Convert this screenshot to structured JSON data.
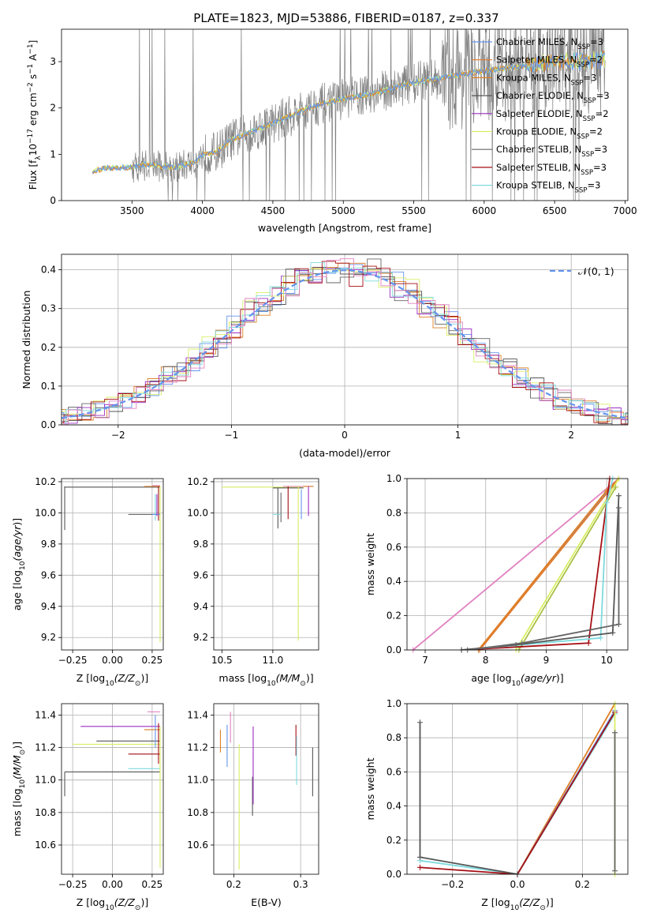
{
  "figure": {
    "title": "PLATE=1823, MJD=53886, FIBERID=0187, z=0.337",
    "colors": [
      "#6495ED",
      "#DE7F25",
      "#E27C2E",
      "#555555",
      "#9B2FC1",
      "#D9EE63",
      "#656565",
      "#A50F15",
      "#7FDADE",
      "#E282C0"
    ],
    "legend_entries": [
      {
        "text": "Chabrier MILES, N",
        "sub": "SSP",
        "tail": "=3",
        "color": "#6495ED"
      },
      {
        "text": "Salpeter MILES, N",
        "sub": "SSP",
        "tail": "=2",
        "color": "#E27C2E"
      },
      {
        "text": "Kroupa MILES, N",
        "sub": "SSP",
        "tail": "=3",
        "color": "#DE7F25"
      },
      {
        "text": "Chabrier ELODIE, N",
        "sub": "SSP",
        "tail": "=3",
        "color": "#555555"
      },
      {
        "text": "Salpeter ELODIE, N",
        "sub": "SSP",
        "tail": "=2",
        "color": "#9B2FC1"
      },
      {
        "text": "Kroupa ELODIE, N",
        "sub": "SSP",
        "tail": "=2",
        "color": "#D9EE63"
      },
      {
        "text": "Chabrier STELIB, N",
        "sub": "SSP",
        "tail": "=3",
        "color": "#656565"
      },
      {
        "text": "Salpeter STELIB, N",
        "sub": "SSP",
        "tail": "=3",
        "color": "#A50F15"
      },
      {
        "text": "Kroupa STELIB, N",
        "sub": "SSP",
        "tail": "=3",
        "color": "#7FDADE"
      }
    ]
  },
  "chart_data": [
    {
      "id": "spectrum",
      "type": "line",
      "xlabel": "wavelength [Angstrom, rest frame]",
      "ylabel_main": "Flux [f",
      "ylabel_sub": "λ",
      "ylabel_mid": "10",
      "ylabel_exp": "−17",
      "ylabel_mid2": " erg cm",
      "ylabel_exp2": "−2",
      "ylabel_mid3": " s",
      "ylabel_exp3": "−1",
      "ylabel_mid4": " A",
      "ylabel_exp4": "−1",
      "ylabel_tail": "]",
      "xlim": [
        3000,
        7020
      ],
      "ylim": [
        0,
        3.7
      ],
      "xticks": [
        "3500",
        "4000",
        "4500",
        "5000",
        "5500",
        "6000",
        "6500",
        "7000"
      ],
      "yticks": [
        "0",
        "1",
        "2",
        "3"
      ],
      "grid": false,
      "legend": "top-right",
      "data_range": [
        3220,
        6860
      ],
      "continuum": [
        [
          3220,
          0.62
        ],
        [
          3300,
          0.7
        ],
        [
          3500,
          0.72
        ],
        [
          3600,
          0.78
        ],
        [
          3700,
          0.75
        ],
        [
          3800,
          0.72
        ],
        [
          3950,
          0.82
        ],
        [
          4000,
          1.0
        ],
        [
          4100,
          1.05
        ],
        [
          4200,
          1.3
        ],
        [
          4400,
          1.55
        ],
        [
          4600,
          1.8
        ],
        [
          4800,
          2.05
        ],
        [
          5000,
          2.2
        ],
        [
          5200,
          2.3
        ],
        [
          5500,
          2.55
        ],
        [
          5800,
          2.7
        ],
        [
          6000,
          2.8
        ],
        [
          6200,
          2.88
        ],
        [
          6500,
          2.98
        ],
        [
          6860,
          3.05
        ]
      ]
    },
    {
      "id": "residuals",
      "type": "line",
      "xlabel": "(data-model)/error",
      "ylabel": "Normed distribution",
      "xlim": [
        -2.5,
        2.5
      ],
      "ylim": [
        0,
        0.44
      ],
      "xticks": [
        "−2",
        "−1",
        "0",
        "1",
        "2"
      ],
      "yticks": [
        "0.0",
        "0.1",
        "0.2",
        "0.3",
        "0.4"
      ],
      "grid": true,
      "legend": "top-right",
      "reference_label": "𝒩(0, 1)",
      "reference_color": "#6495ED",
      "bin_width": 0.12
    },
    {
      "id": "age_vs_Z",
      "type": "scatter",
      "xlabel": "Z [log",
      "xlabel_sub": "10",
      "xlabel_italic": "(Z/Z",
      "xlabel_sub2": "⊙",
      "xlabel_tail": ")]",
      "ylabel": "age  [log",
      "ylabel_sub": "10",
      "ylabel_italic": "(age/yr",
      "ylabel_tail": ")]",
      "xlim": [
        -0.32,
        0.32
      ],
      "ylim": [
        9.12,
        10.22
      ],
      "xticks": [
        "−0.25",
        "0.00",
        "0.25"
      ],
      "xtick_values": [
        -0.25,
        0,
        0.25
      ],
      "yticks": [
        "9.2",
        "9.4",
        "9.6",
        "9.8",
        "10.0",
        "10.2"
      ],
      "ytick_values": [
        9.2,
        9.4,
        9.6,
        9.8,
        10.0,
        10.2
      ],
      "grid": true
    },
    {
      "id": "age_vs_mass",
      "type": "scatter",
      "xlabel": "mass [log",
      "xlabel_sub": "10",
      "xlabel_italic": "(M/M",
      "xlabel_sub2": "⊙",
      "xlabel_tail": ")]",
      "xlim": [
        10.42,
        11.45
      ],
      "ylim": [
        9.12,
        10.22
      ],
      "xticks": [
        "10.5",
        "11.0"
      ],
      "xtick_values": [
        10.5,
        11.0
      ],
      "yticks": [
        "9.2",
        "9.4",
        "9.6",
        "9.8",
        "10.0",
        "10.2"
      ],
      "ytick_values": [
        9.2,
        9.4,
        9.6,
        9.8,
        10.0,
        10.2
      ],
      "grid": true
    },
    {
      "id": "massweight_vs_age",
      "type": "line",
      "xlabel": "age  [log",
      "xlabel_sub": "10",
      "xlabel_italic": "(age/yr",
      "xlabel_tail": ")]",
      "ylabel": "mass weight",
      "xlim": [
        6.7,
        10.35
      ],
      "ylim": [
        0,
        1
      ],
      "xticks": [
        "7",
        "8",
        "9",
        "10"
      ],
      "xtick_values": [
        7,
        8,
        9,
        10
      ],
      "yticks": [
        "0.0",
        "0.2",
        "0.4",
        "0.6",
        "0.8",
        "1.0"
      ],
      "ytick_values": [
        0,
        0.2,
        0.4,
        0.6,
        0.8,
        1.0
      ],
      "grid": true,
      "series": [
        {
          "color": "#E282C0",
          "points": [
            [
              6.8,
              0.0
            ],
            [
              10.2,
              1.0
            ]
          ]
        },
        {
          "color": "#6495ED",
          "points": [
            [
              7.9,
              0.0
            ],
            [
              10.0,
              0.92
            ],
            [
              10.2,
              1.0
            ]
          ]
        },
        {
          "color": "#DE7F25",
          "points": [
            [
              7.88,
              0.0
            ],
            [
              10.0,
              0.93
            ],
            [
              10.2,
              1.0
            ]
          ]
        },
        {
          "color": "#E27C2E",
          "points": [
            [
              7.9,
              0.0
            ],
            [
              10.2,
              1.0
            ]
          ]
        },
        {
          "color": "#D9EE63",
          "points": [
            [
              8.5,
              0.0
            ],
            [
              10.2,
              1.0
            ]
          ]
        },
        {
          "color": "#A8C046",
          "points": [
            [
              8.55,
              0.0
            ],
            [
              10.15,
              0.95
            ]
          ]
        },
        {
          "color": "#A50F15",
          "points": [
            [
              7.6,
              0.0
            ],
            [
              9.7,
              0.04
            ],
            [
              10.05,
              1.0
            ]
          ]
        },
        {
          "color": "#7FDADE",
          "points": [
            [
              7.6,
              0.0
            ],
            [
              9.9,
              0.07
            ],
            [
              10.0,
              0.86
            ],
            [
              10.1,
              1.0
            ]
          ]
        },
        {
          "color": "#555555",
          "points": [
            [
              7.6,
              0.0
            ],
            [
              8.5,
              0.03
            ],
            [
              10.1,
              0.1
            ],
            [
              10.2,
              0.9
            ]
          ]
        },
        {
          "color": "#656565",
          "points": [
            [
              7.7,
              0.0
            ],
            [
              8.6,
              0.04
            ],
            [
              10.2,
              0.15
            ],
            [
              10.2,
              0.83
            ]
          ]
        }
      ]
    },
    {
      "id": "mass_vs_Z",
      "type": "scatter",
      "xlabel": "Z [log",
      "xlabel_sub": "10",
      "xlabel_italic": "(Z/Z",
      "xlabel_sub2": "⊙",
      "xlabel_tail": ")]",
      "ylabel": "mass [log",
      "ylabel_sub": "10",
      "ylabel_italic": "(M/M",
      "ylabel_sub2": "⊙",
      "ylabel_tail": ")]",
      "xlim": [
        -0.32,
        0.32
      ],
      "ylim": [
        10.42,
        11.47
      ],
      "xticks": [
        "−0.25",
        "0.00",
        "0.25"
      ],
      "xtick_values": [
        -0.25,
        0,
        0.25
      ],
      "yticks": [
        "10.6",
        "10.8",
        "11.0",
        "11.2",
        "11.4"
      ],
      "ytick_values": [
        10.6,
        10.8,
        11.0,
        11.2,
        11.4
      ],
      "grid": true
    },
    {
      "id": "mass_vs_ebv",
      "type": "scatter",
      "xlabel": "E(B-V)",
      "xlim": [
        0.17,
        0.327
      ],
      "ylim": [
        10.42,
        11.47
      ],
      "xticks": [
        "0.2",
        "0.3"
      ],
      "xtick_values": [
        0.2,
        0.3
      ],
      "yticks": [
        "10.6",
        "10.8",
        "11.0",
        "11.2",
        "11.4"
      ],
      "ytick_values": [
        10.6,
        10.8,
        11.0,
        11.2,
        11.4
      ],
      "grid": true
    },
    {
      "id": "massweight_vs_Z",
      "type": "line",
      "xlabel": "Z [log",
      "xlabel_sub": "10",
      "xlabel_italic": "(Z/Z",
      "xlabel_sub2": "⊙",
      "xlabel_tail": ")]",
      "ylabel": "mass weight",
      "xlim": [
        -0.34,
        0.34
      ],
      "ylim": [
        0,
        1
      ],
      "xticks": [
        "−0.2",
        "0.0",
        "0.2"
      ],
      "xtick_values": [
        -0.2,
        0,
        0.2
      ],
      "yticks": [
        "0.0",
        "0.2",
        "0.4",
        "0.6",
        "0.8",
        "1.0"
      ],
      "ytick_values": [
        0,
        0.2,
        0.4,
        0.6,
        0.8,
        1.0
      ],
      "grid": true,
      "series": [
        {
          "color": "#DE7F25",
          "points": [
            [
              0.0,
              0.0
            ],
            [
              0.3,
              1.0
            ]
          ]
        },
        {
          "color": "#6495ED",
          "points": [
            [
              0.0,
              0.0
            ],
            [
              0.3,
              0.96
            ]
          ]
        },
        {
          "color": "#7FDADE",
          "points": [
            [
              -0.3,
              0.08
            ],
            [
              0.0,
              0.0
            ],
            [
              0.3,
              0.94
            ]
          ]
        },
        {
          "color": "#A50F15",
          "points": [
            [
              -0.3,
              0.04
            ],
            [
              0.0,
              0.0
            ],
            [
              0.3,
              0.95
            ]
          ]
        },
        {
          "color": "#555555",
          "points": [
            [
              -0.3,
              0.89
            ],
            [
              -0.3,
              0.1
            ],
            [
              0.0,
              0.0
            ]
          ]
        },
        {
          "color": "#D9EE63",
          "points": [
            [
              0.3,
              0.0
            ],
            [
              0.3,
              1.0
            ]
          ]
        },
        {
          "color": "#656565",
          "points": [
            [
              0.3,
              0.02
            ],
            [
              0.3,
              0.83
            ]
          ]
        }
      ]
    }
  ]
}
